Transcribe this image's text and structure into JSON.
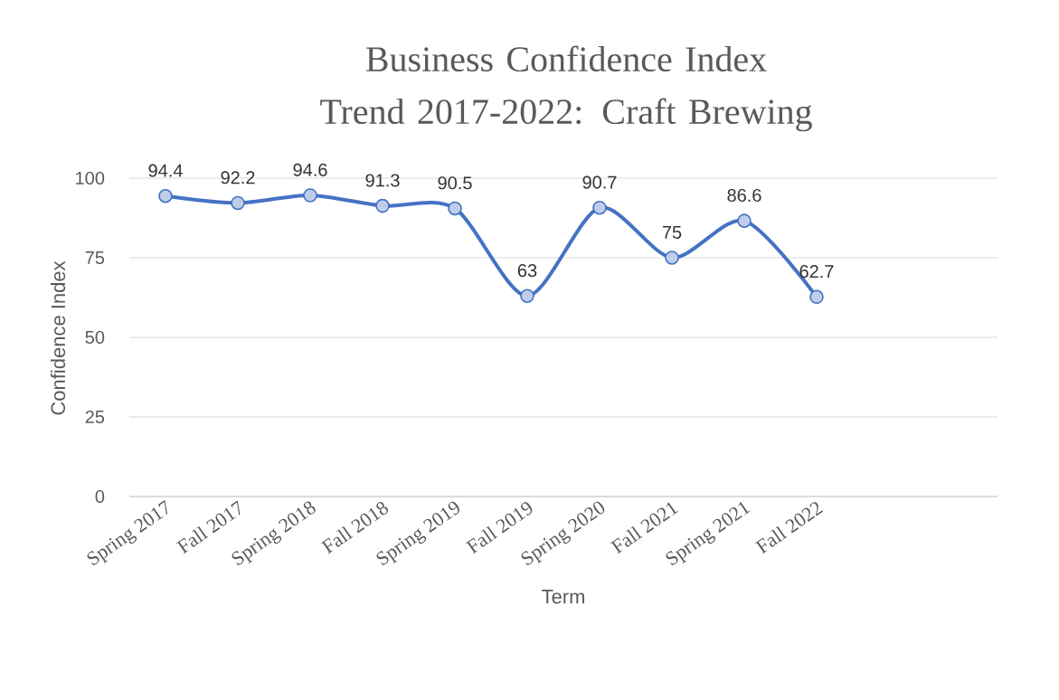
{
  "chart_data": {
    "type": "line",
    "title": "Business Confidence Index Trend 2017-2022: Craft Brewing",
    "xlabel": "Term",
    "ylabel": "Confidence Index",
    "categories": [
      "Spring 2017",
      "Fall 2017",
      "Spring 2018",
      "Fall 2018",
      "Spring 2019",
      "Fall 2019",
      "Spring 2020",
      "Fall 2021",
      "Spring 2021",
      "Fall 2022",
      null,
      null
    ],
    "values": [
      94.4,
      92.2,
      94.6,
      91.3,
      90.5,
      63,
      90.7,
      75,
      86.6,
      62.7,
      null,
      null
    ],
    "color": "#4472c4",
    "ylim": [
      0,
      100
    ],
    "yticks": [
      0,
      25,
      50,
      75,
      100
    ],
    "grid": "y",
    "marker": "circle",
    "line_style": "solid",
    "data_labels": true
  }
}
